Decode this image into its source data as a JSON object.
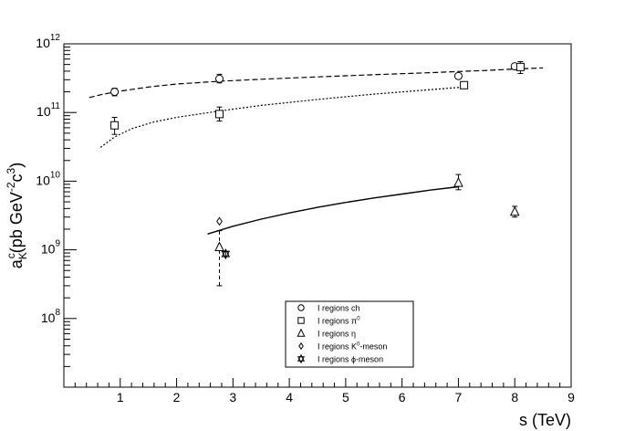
{
  "chart_data": {
    "type": "scatter",
    "title": "",
    "xlabel": "s (TeV)",
    "ylabel": "a_K^c(pb GeV^-2c^3)",
    "ylabel_parts": {
      "main": "a",
      "sub": "K",
      "sup": "c",
      "rest": "(pb GeV",
      "exp1": "-2",
      "rest2": "c",
      "exp2": "3",
      "close": ")"
    },
    "xlim": [
      0,
      9
    ],
    "ylim": [
      10000000.0,
      1000000000000.0
    ],
    "log_y": true,
    "grid": false,
    "legend_position": "bottom-center",
    "x_ticks": [
      "1",
      "2",
      "3",
      "4",
      "5",
      "6",
      "7",
      "8",
      "9"
    ],
    "y_ticks": [
      {
        "base": "10",
        "exp": "8",
        "value": 100000000.0
      },
      {
        "base": "10",
        "exp": "9",
        "value": 1000000000.0
      },
      {
        "base": "10",
        "exp": "10",
        "value": 10000000000.0
      },
      {
        "base": "10",
        "exp": "11",
        "value": 100000000000.0
      },
      {
        "base": "10",
        "exp": "12",
        "value": 1000000000000.0
      }
    ],
    "series": [
      {
        "name": "I regions ch",
        "legend_label": {
          "text": "I regions ch",
          "sup": ""
        },
        "marker": "circle",
        "points": [
          {
            "x": 0.9,
            "y": 200000000000.0,
            "ylo": 175000000000.0,
            "yhi": 225000000000.0
          },
          {
            "x": 2.76,
            "y": 310000000000.0,
            "ylo": 270000000000.0,
            "yhi": 360000000000.0
          },
          {
            "x": 7.0,
            "y": 340000000000.0,
            "ylo": 310000000000.0,
            "yhi": 370000000000.0
          },
          {
            "x": 8.0,
            "y": 470000000000.0,
            "ylo": 430000000000.0,
            "yhi": 510000000000.0
          }
        ],
        "curve": {
          "style": "dashed",
          "x": [
            0.45,
            0.7,
            1.0,
            1.5,
            2.0,
            2.76,
            3.5,
            4.5,
            5.5,
            6.5,
            7.0,
            7.5,
            8.0,
            8.5
          ],
          "y": [
            165000000000.0,
            185000000000.0,
            205000000000.0,
            235000000000.0,
            260000000000.0,
            285000000000.0,
            305000000000.0,
            330000000000.0,
            355000000000.0,
            380000000000.0,
            395000000000.0,
            410000000000.0,
            430000000000.0,
            445000000000.0
          ]
        }
      },
      {
        "name": "I regions π0",
        "legend_label": {
          "text": "I regions  π",
          "sup": "0"
        },
        "marker": "square",
        "points": [
          {
            "x": 0.9,
            "y": 65000000000.0,
            "ylo": 48000000000.0,
            "yhi": 85000000000.0
          },
          {
            "x": 2.76,
            "y": 95000000000.0,
            "ylo": 75000000000.0,
            "yhi": 120000000000.0
          },
          {
            "x": 7.1,
            "y": 250000000000.0,
            "ylo": 225000000000.0,
            "yhi": 275000000000.0
          },
          {
            "x": 8.1,
            "y": 460000000000.0,
            "ylo": 370000000000.0,
            "yhi": 550000000000.0
          }
        ],
        "curve": {
          "style": "dotted",
          "x": [
            0.65,
            0.9,
            1.2,
            1.6,
            2.0,
            2.76,
            3.5,
            4.5,
            5.5,
            6.5,
            7.1
          ],
          "y": [
            31000000000.0,
            44000000000.0,
            58000000000.0,
            73000000000.0,
            85000000000.0,
            105000000000.0,
            127000000000.0,
            155000000000.0,
            185000000000.0,
            215000000000.0,
            235000000000.0
          ]
        }
      },
      {
        "name": "I regions η",
        "legend_label": {
          "text": "I regions   η",
          "sup": ""
        },
        "marker": "triangle",
        "points": [
          {
            "x": 2.76,
            "y": 1100000000.0,
            "ylo": 300000000.0,
            "yhi": 1900000000.0
          },
          {
            "x": 7.0,
            "y": 9500000000.0,
            "ylo": 7500000000.0,
            "yhi": 12500000000.0
          },
          {
            "x": 8.0,
            "y": 3600000000.0,
            "ylo": 3000000000.0,
            "yhi": 4300000000.0
          }
        ],
        "curve": {
          "style": "solid",
          "x": [
            2.55,
            3.0,
            3.5,
            4.0,
            4.5,
            5.0,
            5.5,
            6.0,
            6.5,
            7.0
          ],
          "y": [
            1700000000.0,
            2200000000.0,
            2800000000.0,
            3450000000.0,
            4150000000.0,
            4900000000.0,
            5700000000.0,
            6500000000.0,
            7400000000.0,
            8300000000.0
          ]
        }
      },
      {
        "name": "I regions K0-meson",
        "legend_label": {
          "text": "I regions K",
          "sup": "0",
          "suffix": "-meson"
        },
        "marker": "diamond",
        "points": [
          {
            "x": 2.76,
            "y": 2600000000.0
          }
        ]
      },
      {
        "name": "I regions ϕ-meson",
        "legend_label": {
          "text": "I regions   ϕ-meson",
          "sup": ""
        },
        "marker": "star",
        "points": [
          {
            "x": 2.87,
            "y": 870000000.0,
            "ylo": 800000000.0,
            "yhi": 940000000.0
          }
        ]
      }
    ]
  }
}
